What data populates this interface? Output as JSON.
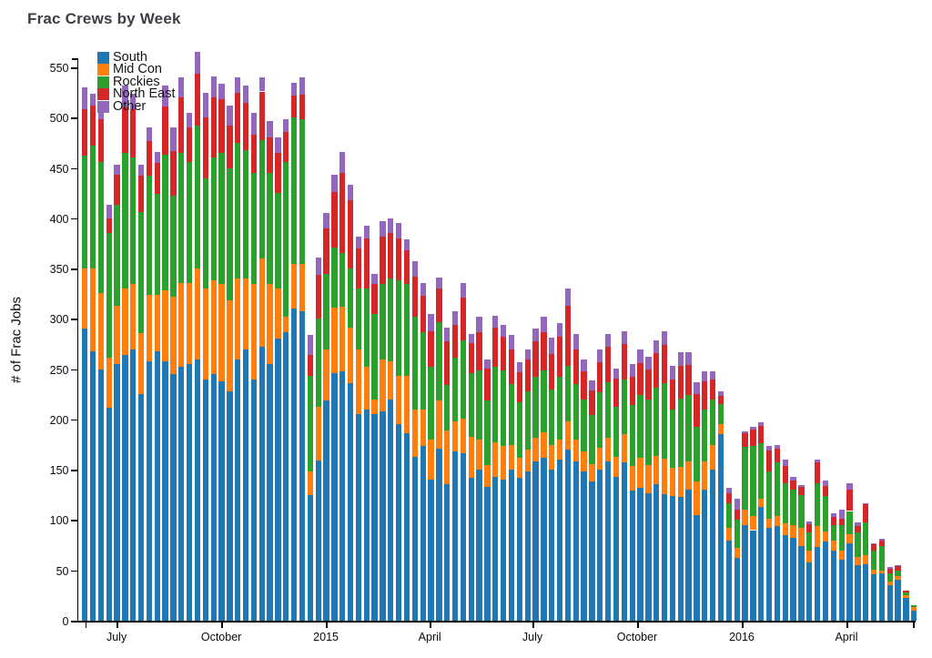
{
  "title": "Frac Crews by Week",
  "chart_data": {
    "type": "bar",
    "stacked": true,
    "title": "Frac Crews by Week",
    "xlabel": "",
    "ylabel": "# of Frac Jobs",
    "ylim": [
      0,
      550
    ],
    "grid": false,
    "legend_position": "inside-top-left",
    "weeks_count": 104,
    "x_description": "Weekly bars from mid-June 2014 through late May 2016",
    "y_ticks": [
      0,
      50,
      100,
      150,
      200,
      250,
      300,
      350,
      400,
      450,
      500,
      550
    ],
    "x_ticks": [
      {
        "label": "July",
        "week_pos": 4.95
      },
      {
        "label": "October",
        "week_pos": 17.95
      },
      {
        "label": "2015",
        "week_pos": 30.95
      },
      {
        "label": "April",
        "week_pos": 43.85
      },
      {
        "label": "July",
        "week_pos": 56.6
      },
      {
        "label": "October",
        "week_pos": 69.6
      },
      {
        "label": "2016",
        "week_pos": 82.6
      },
      {
        "label": "April",
        "week_pos": 95.6
      }
    ],
    "x_axis_extra_ticks": [
      1.04,
      103.9
    ],
    "series": [
      {
        "name": "South",
        "color": "#1f77b4",
        "values": [
          290,
          268,
          250,
          212,
          255,
          264,
          270,
          225,
          258,
          268,
          258,
          245,
          252,
          255,
          260,
          240,
          245,
          238,
          228,
          260,
          270,
          240,
          272,
          255,
          280,
          287,
          310,
          308,
          125,
          159,
          219,
          246,
          248,
          236,
          205,
          210,
          205,
          208,
          220,
          195,
          186,
          163,
          174,
          140,
          171,
          136,
          168,
          166,
          142,
          150,
          133,
          143,
          140,
          150,
          142,
          148,
          158,
          162,
          150,
          160,
          170,
          158,
          148,
          138,
          150,
          158,
          143,
          157,
          129,
          132,
          127,
          136,
          126,
          124,
          123,
          130,
          105,
          130,
          150,
          185,
          80,
          62,
          95,
          90,
          113,
          92,
          94,
          85,
          82,
          74,
          58,
          73,
          79,
          70,
          61,
          77,
          55,
          56,
          46,
          47,
          35,
          41,
          23,
          10
        ]
      },
      {
        "name": "Mid Con",
        "color": "#ff7f0e",
        "values": [
          60,
          82,
          76,
          49,
          58,
          66,
          65,
          61,
          66,
          56,
          70,
          77,
          84,
          81,
          90,
          90,
          93,
          97,
          90,
          80,
          70,
          95,
          88,
          80,
          50,
          15,
          45,
          47,
          23,
          54,
          51,
          65,
          64,
          55,
          65,
          42,
          15,
          52,
          38,
          48,
          57,
          47,
          36,
          40,
          48,
          53,
          30,
          35,
          41,
          30,
          22,
          34,
          34,
          25,
          20,
          22,
          24,
          25,
          25,
          20,
          28,
          22,
          20,
          18,
          22,
          24,
          20,
          28,
          25,
          30,
          28,
          28,
          35,
          28,
          30,
          28,
          33,
          28,
          25,
          10,
          12,
          10,
          15,
          14,
          8,
          9,
          10,
          12,
          13,
          18,
          12,
          21,
          10,
          10,
          9,
          9,
          8,
          9,
          5,
          3,
          4,
          3,
          2,
          4
        ]
      },
      {
        "name": "Rockies",
        "color": "#2ca02c",
        "values": [
          112,
          122,
          130,
          124,
          100,
          135,
          125,
          120,
          118,
          100,
          135,
          100,
          129,
          120,
          142,
          110,
          122,
          130,
          132,
          135,
          128,
          110,
          118,
          110,
          95,
          154,
          145,
          143,
          95,
          87,
          75,
          60,
          53,
          59,
          60,
          78,
          85,
          75,
          82,
          95,
          92,
          92,
          77,
          72,
          78,
          45,
          63,
          78,
          63,
          69,
          64,
          75,
          75,
          60,
          55,
          58,
          60,
          62,
          55,
          62,
          55,
          55,
          52,
          48,
          55,
          55,
          50,
          55,
          60,
          62,
          65,
          68,
          75,
          58,
          68,
          66,
          55,
          52,
          45,
          20,
          25,
          28,
          63,
          70,
          55,
          47,
          53,
          40,
          35,
          33,
          18,
          43,
          35,
          15,
          25,
          23,
          25,
          33,
          19,
          24,
          8,
          6,
          3,
          1
        ]
      },
      {
        "name": "North East",
        "color": "#d62728",
        "values": [
          46,
          40,
          42,
          15,
          30,
          45,
          48,
          36,
          35,
          31,
          48,
          45,
          55,
          34,
          52,
          60,
          60,
          53,
          42,
          50,
          47,
          38,
          48,
          35,
          40,
          30,
          22,
          25,
          21,
          44,
          45,
          55,
          80,
          68,
          40,
          50,
          30,
          47,
          45,
          42,
          33,
          40,
          36,
          36,
          33,
          44,
          33,
          42,
          30,
          38,
          32,
          39,
          33,
          35,
          30,
          32,
          36,
          38,
          35,
          40,
          60,
          35,
          28,
          25,
          30,
          35,
          28,
          35,
          28,
          32,
          30,
          34,
          38,
          30,
          32,
          30,
          32,
          28,
          20,
          8,
          10,
          10,
          13,
          16,
          18,
          21,
          14,
          17,
          9,
          8,
          8,
          20,
          10,
          8,
          6,
          21,
          6,
          18,
          6,
          6,
          5,
          4,
          2,
          0
        ]
      },
      {
        "name": "Other",
        "color": "#9467bd",
        "values": [
          22,
          12,
          13,
          13,
          10,
          22,
          16,
          11,
          13,
          11,
          21,
          23,
          20,
          15,
          21,
          25,
          21,
          16,
          20,
          15,
          17,
          22,
          14,
          17,
          15,
          12,
          13,
          17,
          20,
          17,
          15,
          17,
          21,
          15,
          12,
          13,
          10,
          15,
          15,
          15,
          11,
          15,
          13,
          17,
          11,
          13,
          14,
          15,
          9,
          15,
          9,
          12,
          12,
          14,
          10,
          10,
          12,
          15,
          16,
          14,
          17,
          15,
          12,
          10,
          13,
          13,
          10,
          13,
          13,
          14,
          12,
          13,
          14,
          13,
          14,
          13,
          12,
          10,
          8,
          5,
          5,
          11,
          2,
          3,
          3,
          5,
          4,
          6,
          4,
          2,
          3,
          3,
          5,
          4,
          9,
          7,
          4,
          1,
          1,
          1,
          1,
          1,
          0,
          0
        ]
      }
    ]
  }
}
